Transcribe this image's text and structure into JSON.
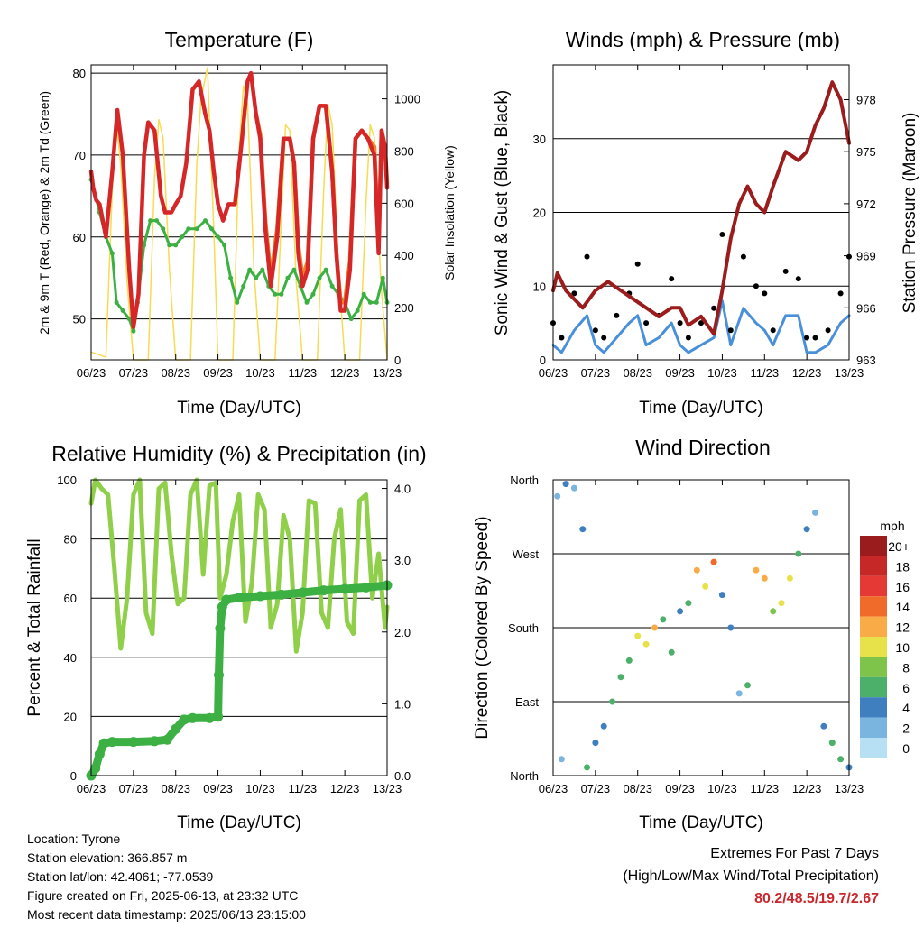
{
  "panels": {
    "temperature": {
      "title": "Temperature (F)",
      "ylabel": "2m & 9m T (Red, Orange) & 2m Td (Green)",
      "y2label": "Solar Insolation (Yellow)",
      "xlabel": "Time (Day/UTC)"
    },
    "winds": {
      "title": "Winds (mph) & Pressure (mb)",
      "ylabel": "Sonic Wind & Gust (Blue, Black)",
      "y2label": "Station Pressure (Maroon)",
      "xlabel": "Time (Day/UTC)"
    },
    "humidity": {
      "title": "Relative Humidity (%) & Precipitation (in)",
      "ylabel": "Percent & Total Rainfall",
      "xlabel": "Time (Day/UTC)"
    },
    "direction": {
      "title": "Wind Direction",
      "ylabel": "Direction (Colored By Speed)",
      "xlabel": "Time (Day/UTC)"
    }
  },
  "info": {
    "location": "Location: Tyrone",
    "elevation": "Station elevation: 366.857 m",
    "latlon": "Station lat/lon: 42.4061; -77.0539",
    "created": "Figure created on Fri, 2025-06-13, at 23:32 UTC",
    "recent": "Most recent data timestamp: 2025/06/13 23:15:00"
  },
  "extremes": {
    "line1": "Extremes For Past 7 Days",
    "line2": "(High/Low/Max Wind/Total Precipitation)",
    "values": "80.2/48.5/19.7/2.67"
  },
  "colors": {
    "temp_2m": "#d62728",
    "temp_9m": "#f5822a",
    "dewpoint": "#3cb043",
    "solar": "#f5dc50",
    "wind": "#4a90d9",
    "gust": "#000000",
    "pressure": "#9b1c1c",
    "rh": "#8fcf4a",
    "precip": "#3cb043"
  },
  "chart_data": [
    {
      "type": "line",
      "id": "temperature",
      "x_ticks": [
        "06/23",
        "07/23",
        "08/23",
        "09/23",
        "10/23",
        "11/23",
        "12/23",
        "13/23"
      ],
      "ylim": [
        45,
        81
      ],
      "yticks": [
        50,
        60,
        70,
        80
      ],
      "y2lim": [
        0,
        1130
      ],
      "y2ticks": [
        0,
        200,
        400,
        600,
        800,
        1000
      ],
      "series": [
        {
          "name": "2m T",
          "axis": "left",
          "color": "#d62728",
          "x": [
            0,
            0.05,
            0.12,
            0.2,
            0.35,
            0.5,
            0.62,
            0.75,
            0.9,
            1.0,
            1.12,
            1.25,
            1.35,
            1.5,
            1.65,
            1.75,
            1.9,
            2.0,
            2.12,
            2.25,
            2.4,
            2.55,
            2.7,
            2.8,
            2.9,
            3.0,
            3.12,
            3.25,
            3.4,
            3.55,
            3.7,
            3.78,
            3.9,
            4.0,
            4.12,
            4.25,
            4.4,
            4.55,
            4.7,
            4.8,
            4.9,
            5.0,
            5.12,
            5.25,
            5.4,
            5.55,
            5.7,
            5.8,
            5.9,
            6.0,
            6.12,
            6.25,
            6.4,
            6.55,
            6.7,
            6.8,
            6.87,
            6.95,
            7.0
          ],
          "y": [
            68,
            66,
            64.5,
            64,
            60,
            68,
            75.5,
            70,
            56,
            49,
            53,
            70,
            74,
            73,
            65,
            63,
            63,
            64,
            65,
            69,
            78,
            79,
            75,
            73,
            68,
            64,
            62,
            64,
            64,
            71,
            79,
            80,
            75,
            72,
            61,
            54,
            60,
            72,
            72,
            69,
            58,
            54,
            56,
            72,
            76,
            76,
            68,
            58,
            51,
            51,
            56,
            72,
            73,
            72,
            70,
            58,
            73,
            71,
            66
          ]
        },
        {
          "name": "9m T",
          "axis": "left",
          "color": "#f5822a",
          "x": [
            3.9,
            4.0,
            4.12,
            4.25,
            4.4,
            4.55,
            4.7,
            4.8,
            4.9,
            5.0,
            5.12,
            5.25,
            5.4,
            5.55,
            5.7,
            5.8,
            5.9,
            6.0,
            6.12,
            6.25,
            6.4,
            6.55,
            6.7,
            6.8,
            6.87,
            6.95,
            7.0
          ],
          "y": [
            75,
            72.5,
            62,
            55,
            61,
            72,
            72,
            69,
            59,
            55,
            57,
            72,
            76,
            76,
            68,
            58,
            52,
            52,
            57,
            72,
            73,
            72,
            71,
            59,
            73,
            71,
            66.5
          ]
        },
        {
          "name": "2m Td",
          "axis": "left",
          "color": "#3cb043",
          "x": [
            0,
            0.1,
            0.2,
            0.35,
            0.5,
            0.6,
            0.75,
            0.9,
            1.0,
            1.1,
            1.25,
            1.4,
            1.55,
            1.7,
            1.85,
            2.0,
            2.15,
            2.3,
            2.5,
            2.7,
            2.85,
            3.0,
            3.15,
            3.3,
            3.45,
            3.6,
            3.75,
            3.9,
            4.05,
            4.2,
            4.35,
            4.5,
            4.65,
            4.8,
            4.95,
            5.1,
            5.25,
            5.4,
            5.55,
            5.7,
            5.85,
            6.0,
            6.15,
            6.3,
            6.45,
            6.6,
            6.75,
            6.9,
            7.0
          ],
          "y": [
            67,
            65,
            63,
            60,
            58,
            52,
            51,
            50,
            48.5,
            52,
            59,
            62,
            62,
            61,
            59,
            59,
            60,
            61,
            61,
            62,
            61,
            60,
            59,
            55,
            52,
            54,
            56,
            55,
            56,
            54,
            53,
            53,
            55,
            56,
            54,
            52,
            53,
            55,
            56,
            54,
            53,
            52,
            50,
            51,
            53,
            52,
            52,
            55,
            52
          ]
        },
        {
          "name": "Solar Insolation",
          "axis": "right",
          "color": "#f5dc50",
          "x": [
            0,
            0.35,
            0.5,
            0.6,
            0.7,
            0.85,
            1.0,
            1.35,
            1.5,
            1.6,
            1.7,
            1.85,
            2.0,
            2.35,
            2.5,
            2.6,
            2.75,
            2.9,
            3.0,
            3.35,
            3.5,
            3.6,
            3.7,
            3.85,
            4.0,
            4.35,
            4.5,
            4.6,
            4.7,
            4.85,
            5.0,
            5.35,
            5.5,
            5.6,
            5.7,
            5.85,
            6.0,
            6.35,
            6.5,
            6.6,
            6.7,
            6.85,
            7.0
          ],
          "y": [
            30,
            10,
            650,
            900,
            750,
            300,
            0,
            0,
            700,
            920,
            850,
            350,
            0,
            0,
            750,
            1000,
            1120,
            500,
            0,
            0,
            800,
            1050,
            980,
            350,
            0,
            0,
            550,
            900,
            880,
            300,
            0,
            0,
            650,
            980,
            900,
            350,
            0,
            0,
            600,
            900,
            850,
            300,
            0
          ]
        }
      ]
    },
    {
      "type": "scatter",
      "id": "winds",
      "x_ticks": [
        "06/23",
        "07/23",
        "08/23",
        "09/23",
        "10/23",
        "11/23",
        "12/23",
        "13/23"
      ],
      "ylim": [
        0,
        40
      ],
      "yticks": [
        0,
        10,
        20,
        30
      ],
      "y2lim": [
        963,
        980
      ],
      "y2ticks": [
        963,
        966,
        969,
        972,
        975,
        978
      ],
      "series": [
        {
          "name": "Gust",
          "axis": "left",
          "color": "#000000",
          "x": [
            0,
            0.2,
            0.5,
            0.8,
            1.0,
            1.2,
            1.5,
            1.8,
            2.0,
            2.2,
            2.5,
            2.8,
            3.0,
            3.2,
            3.5,
            3.8,
            4.0,
            4.2,
            4.5,
            4.8,
            5.0,
            5.2,
            5.5,
            5.8,
            6.0,
            6.2,
            6.5,
            6.8,
            7.0
          ],
          "y": [
            5,
            3,
            9,
            14,
            4,
            3,
            6,
            9,
            13,
            5,
            6,
            11,
            5,
            3,
            5,
            7,
            17,
            4,
            14,
            10,
            9,
            4,
            12,
            11,
            3,
            3,
            4,
            9,
            14
          ]
        },
        {
          "name": "Wind",
          "axis": "left",
          "color": "#4a90d9",
          "x": [
            0,
            0.2,
            0.5,
            0.8,
            1.0,
            1.2,
            1.5,
            1.8,
            2.0,
            2.2,
            2.5,
            2.8,
            3.0,
            3.2,
            3.5,
            3.8,
            4.0,
            4.2,
            4.5,
            4.8,
            5.0,
            5.2,
            5.5,
            5.8,
            6.0,
            6.2,
            6.5,
            6.8,
            7.0
          ],
          "y": [
            2,
            1,
            4,
            6,
            2,
            1,
            3,
            5,
            6,
            2,
            3,
            5,
            2,
            1,
            2,
            3,
            8,
            2,
            7,
            5,
            4,
            2,
            6,
            6,
            1,
            1,
            2,
            5,
            6
          ]
        },
        {
          "name": "Station Pressure",
          "axis": "right",
          "color": "#9b1c1c",
          "x": [
            0,
            0.1,
            0.3,
            0.5,
            0.7,
            1.0,
            1.3,
            1.6,
            1.9,
            2.2,
            2.5,
            2.8,
            3.0,
            3.2,
            3.5,
            3.8,
            4.0,
            4.2,
            4.4,
            4.6,
            4.8,
            5.0,
            5.2,
            5.5,
            5.8,
            6.0,
            6.2,
            6.4,
            6.6,
            6.8,
            7.0
          ],
          "y": [
            967,
            968,
            967,
            966.5,
            966,
            967,
            967.5,
            967,
            966.5,
            966,
            965.5,
            966,
            966,
            965,
            965.5,
            964.5,
            967,
            970,
            972,
            973,
            972,
            971.5,
            973,
            975,
            974.5,
            975,
            976.5,
            977.5,
            979,
            978,
            975.5
          ]
        }
      ]
    },
    {
      "type": "line",
      "id": "humidity",
      "x_ticks": [
        "06/23",
        "07/23",
        "08/23",
        "09/23",
        "10/23",
        "11/23",
        "12/23",
        "13/23"
      ],
      "ylim": [
        0,
        100
      ],
      "yticks": [
        0,
        20,
        40,
        60,
        80,
        100
      ],
      "y2lim": [
        0,
        4.12
      ],
      "y2ticks": [
        "0.0",
        "1.0",
        "2.0",
        "3.0",
        "4.0"
      ],
      "series": [
        {
          "name": "Relative Humidity",
          "axis": "left",
          "color": "#8fcf4a",
          "x": [
            0,
            0.1,
            0.25,
            0.4,
            0.55,
            0.7,
            0.85,
            1.0,
            1.15,
            1.3,
            1.45,
            1.6,
            1.75,
            1.9,
            2.05,
            2.2,
            2.35,
            2.5,
            2.65,
            2.8,
            2.95,
            3.05,
            3.2,
            3.35,
            3.5,
            3.65,
            3.8,
            3.95,
            4.1,
            4.25,
            4.4,
            4.55,
            4.7,
            4.85,
            5.0,
            5.15,
            5.3,
            5.45,
            5.6,
            5.75,
            5.9,
            6.05,
            6.2,
            6.35,
            6.5,
            6.65,
            6.8,
            6.95,
            7.0
          ],
          "y": [
            92,
            100,
            97,
            95,
            70,
            43,
            60,
            95,
            100,
            55,
            48,
            97,
            99,
            75,
            58,
            60,
            95,
            100,
            68,
            98,
            99,
            60,
            68,
            86,
            95,
            52,
            65,
            95,
            90,
            50,
            58,
            88,
            80,
            42,
            55,
            93,
            92,
            55,
            50,
            80,
            90,
            52,
            48,
            93,
            95,
            60,
            75,
            50,
            57
          ]
        },
        {
          "name": "Total Precipitation",
          "axis": "right",
          "color": "#3cb043",
          "x": [
            0,
            0.1,
            0.2,
            0.3,
            0.5,
            1.0,
            1.5,
            1.8,
            2.0,
            2.2,
            2.4,
            2.8,
            3.0,
            3.02,
            3.05,
            3.1,
            3.2,
            3.5,
            4.0,
            4.5,
            5.0,
            5.5,
            6.0,
            6.5,
            7.0
          ],
          "y": [
            0,
            0.1,
            0.3,
            0.45,
            0.47,
            0.47,
            0.48,
            0.5,
            0.65,
            0.78,
            0.8,
            0.8,
            0.82,
            1.4,
            2.05,
            2.35,
            2.45,
            2.48,
            2.5,
            2.52,
            2.55,
            2.58,
            2.6,
            2.62,
            2.65
          ]
        }
      ]
    },
    {
      "type": "scatter",
      "id": "direction",
      "x_ticks": [
        "06/23",
        "07/23",
        "08/23",
        "09/23",
        "10/23",
        "11/23",
        "12/23",
        "13/23"
      ],
      "y_ticks": [
        "North",
        "East",
        "South",
        "West",
        "North"
      ],
      "ylim": [
        0,
        360
      ],
      "legend": {
        "title": "mph",
        "labels": [
          "20+",
          "18",
          "16",
          "14",
          "12",
          "10",
          "8",
          "6",
          "4",
          "2",
          "0"
        ],
        "colors": [
          "#9b1c1c",
          "#c62828",
          "#e53935",
          "#f06a2a",
          "#f9ab48",
          "#e8e24a",
          "#7fc44a",
          "#4caf6a",
          "#3f7fc0",
          "#7ab5e0",
          "#b8e0f5"
        ]
      },
      "points": {
        "x": [
          0.1,
          0.2,
          0.3,
          0.5,
          0.7,
          0.8,
          1.0,
          1.2,
          1.4,
          1.6,
          1.8,
          2.0,
          2.2,
          2.4,
          2.6,
          2.8,
          3.0,
          3.2,
          3.4,
          3.6,
          3.8,
          4.0,
          4.2,
          4.4,
          4.6,
          4.8,
          5.0,
          5.2,
          5.4,
          5.6,
          5.8,
          6.0,
          6.2,
          6.4,
          6.6,
          6.8,
          7.0
        ],
        "y": [
          340,
          20,
          355,
          350,
          300,
          10,
          40,
          60,
          90,
          120,
          140,
          170,
          160,
          180,
          190,
          150,
          200,
          210,
          250,
          230,
          260,
          220,
          180,
          100,
          110,
          250,
          240,
          200,
          210,
          240,
          270,
          300,
          320,
          60,
          40,
          20,
          10
        ],
        "speed": [
          2,
          1,
          3,
          2,
          4,
          6,
          3,
          4,
          5,
          6,
          5,
          9,
          10,
          11,
          6,
          5,
          4,
          6,
          12,
          10,
          13,
          4,
          3,
          2,
          5,
          12,
          11,
          8,
          10,
          9,
          6,
          3,
          2,
          3,
          5,
          6,
          4
        ]
      }
    }
  ]
}
